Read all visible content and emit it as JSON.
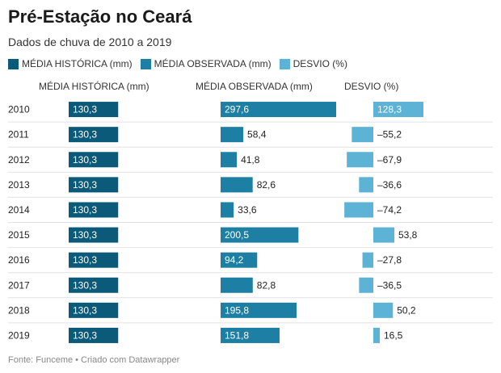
{
  "title": "Pré-Estação no Ceará",
  "subtitle": "Dados de chuva de 2010 a 2019",
  "legend": [
    {
      "label": "MÉDIA HISTÓRICA (mm)",
      "color": "#0c5a79"
    },
    {
      "label": "MÉDIA OBSERVADA (mm)",
      "color": "#1c7fa3"
    },
    {
      "label": "DESVIO (%)",
      "color": "#5cb3d6"
    }
  ],
  "column_headers": {
    "historica": "MÉDIA HISTÓRICA (mm)",
    "observada": "MÉDIA OBSERVADA (mm)",
    "desvio": "DESVIO (%)"
  },
  "footer": "Fonte: Funceme • Criado com Datawrapper",
  "chart_data": {
    "type": "bar",
    "categories": [
      "2010",
      "2011",
      "2012",
      "2013",
      "2014",
      "2015",
      "2016",
      "2017",
      "2018",
      "2019"
    ],
    "series": [
      {
        "name": "MÉDIA HISTÓRICA (mm)",
        "values": [
          130.3,
          130.3,
          130.3,
          130.3,
          130.3,
          130.3,
          130.3,
          130.3,
          130.3,
          130.3
        ],
        "labels": [
          "130,3",
          "130,3",
          "130,3",
          "130,3",
          "130,3",
          "130,3",
          "130,3",
          "130,3",
          "130,3",
          "130,3"
        ]
      },
      {
        "name": "MÉDIA OBSERVADA (mm)",
        "values": [
          297.6,
          58.4,
          41.8,
          82.6,
          33.6,
          200.5,
          94.2,
          82.8,
          195.8,
          151.8
        ],
        "labels": [
          "297,6",
          "58,4",
          "41,8",
          "82,6",
          "33,6",
          "200,5",
          "94,2",
          "82,8",
          "195,8",
          "151,8"
        ]
      },
      {
        "name": "DESVIO (%)",
        "values": [
          128.3,
          -55.2,
          -67.9,
          -36.6,
          -74.2,
          53.8,
          -27.8,
          -36.5,
          50.2,
          16.5
        ],
        "labels": [
          "128,3",
          "–55,2",
          "–67,9",
          "–36,6",
          "–74,2",
          "53,8",
          "–27,8",
          "–36,5",
          "50,2",
          "16,5"
        ]
      }
    ],
    "colors": {
      "historica": "#0c5a79",
      "observada": "#1c7fa3",
      "desvio": "#5cb3d6"
    }
  }
}
